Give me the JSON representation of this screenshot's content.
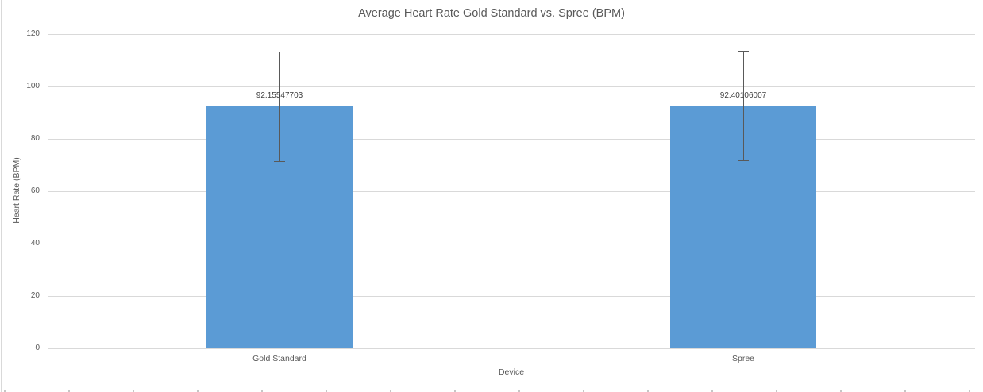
{
  "chart_data": {
    "type": "bar",
    "title": "Average Heart Rate Gold Standard vs. Spree (BPM)",
    "xlabel": "Device",
    "ylabel": "Heart Rate (BPM)",
    "categories": [
      "Gold Standard",
      "Spree"
    ],
    "values": [
      92.15547703,
      92.40106007
    ],
    "data_labels": [
      "92.15547703",
      "92.40106007"
    ],
    "error_bars": [
      {
        "low": 71.4,
        "high": 113.1
      },
      {
        "low": 71.6,
        "high": 113.4
      }
    ],
    "ylim": [
      0,
      120
    ],
    "ytick_values": [
      0,
      20,
      40,
      60,
      80,
      100,
      120
    ],
    "ytick_labels": [
      "0",
      "20",
      "40",
      "60",
      "80",
      "100",
      "120"
    ],
    "grid": "horizontal",
    "legend": "none",
    "colors": {
      "bar_fill": "#5B9BD5",
      "error_bar": "#595959",
      "gridline": "#D9D9D9",
      "title_text": "#595959",
      "axis_text": "#595959",
      "data_label_text": "#404040"
    }
  }
}
